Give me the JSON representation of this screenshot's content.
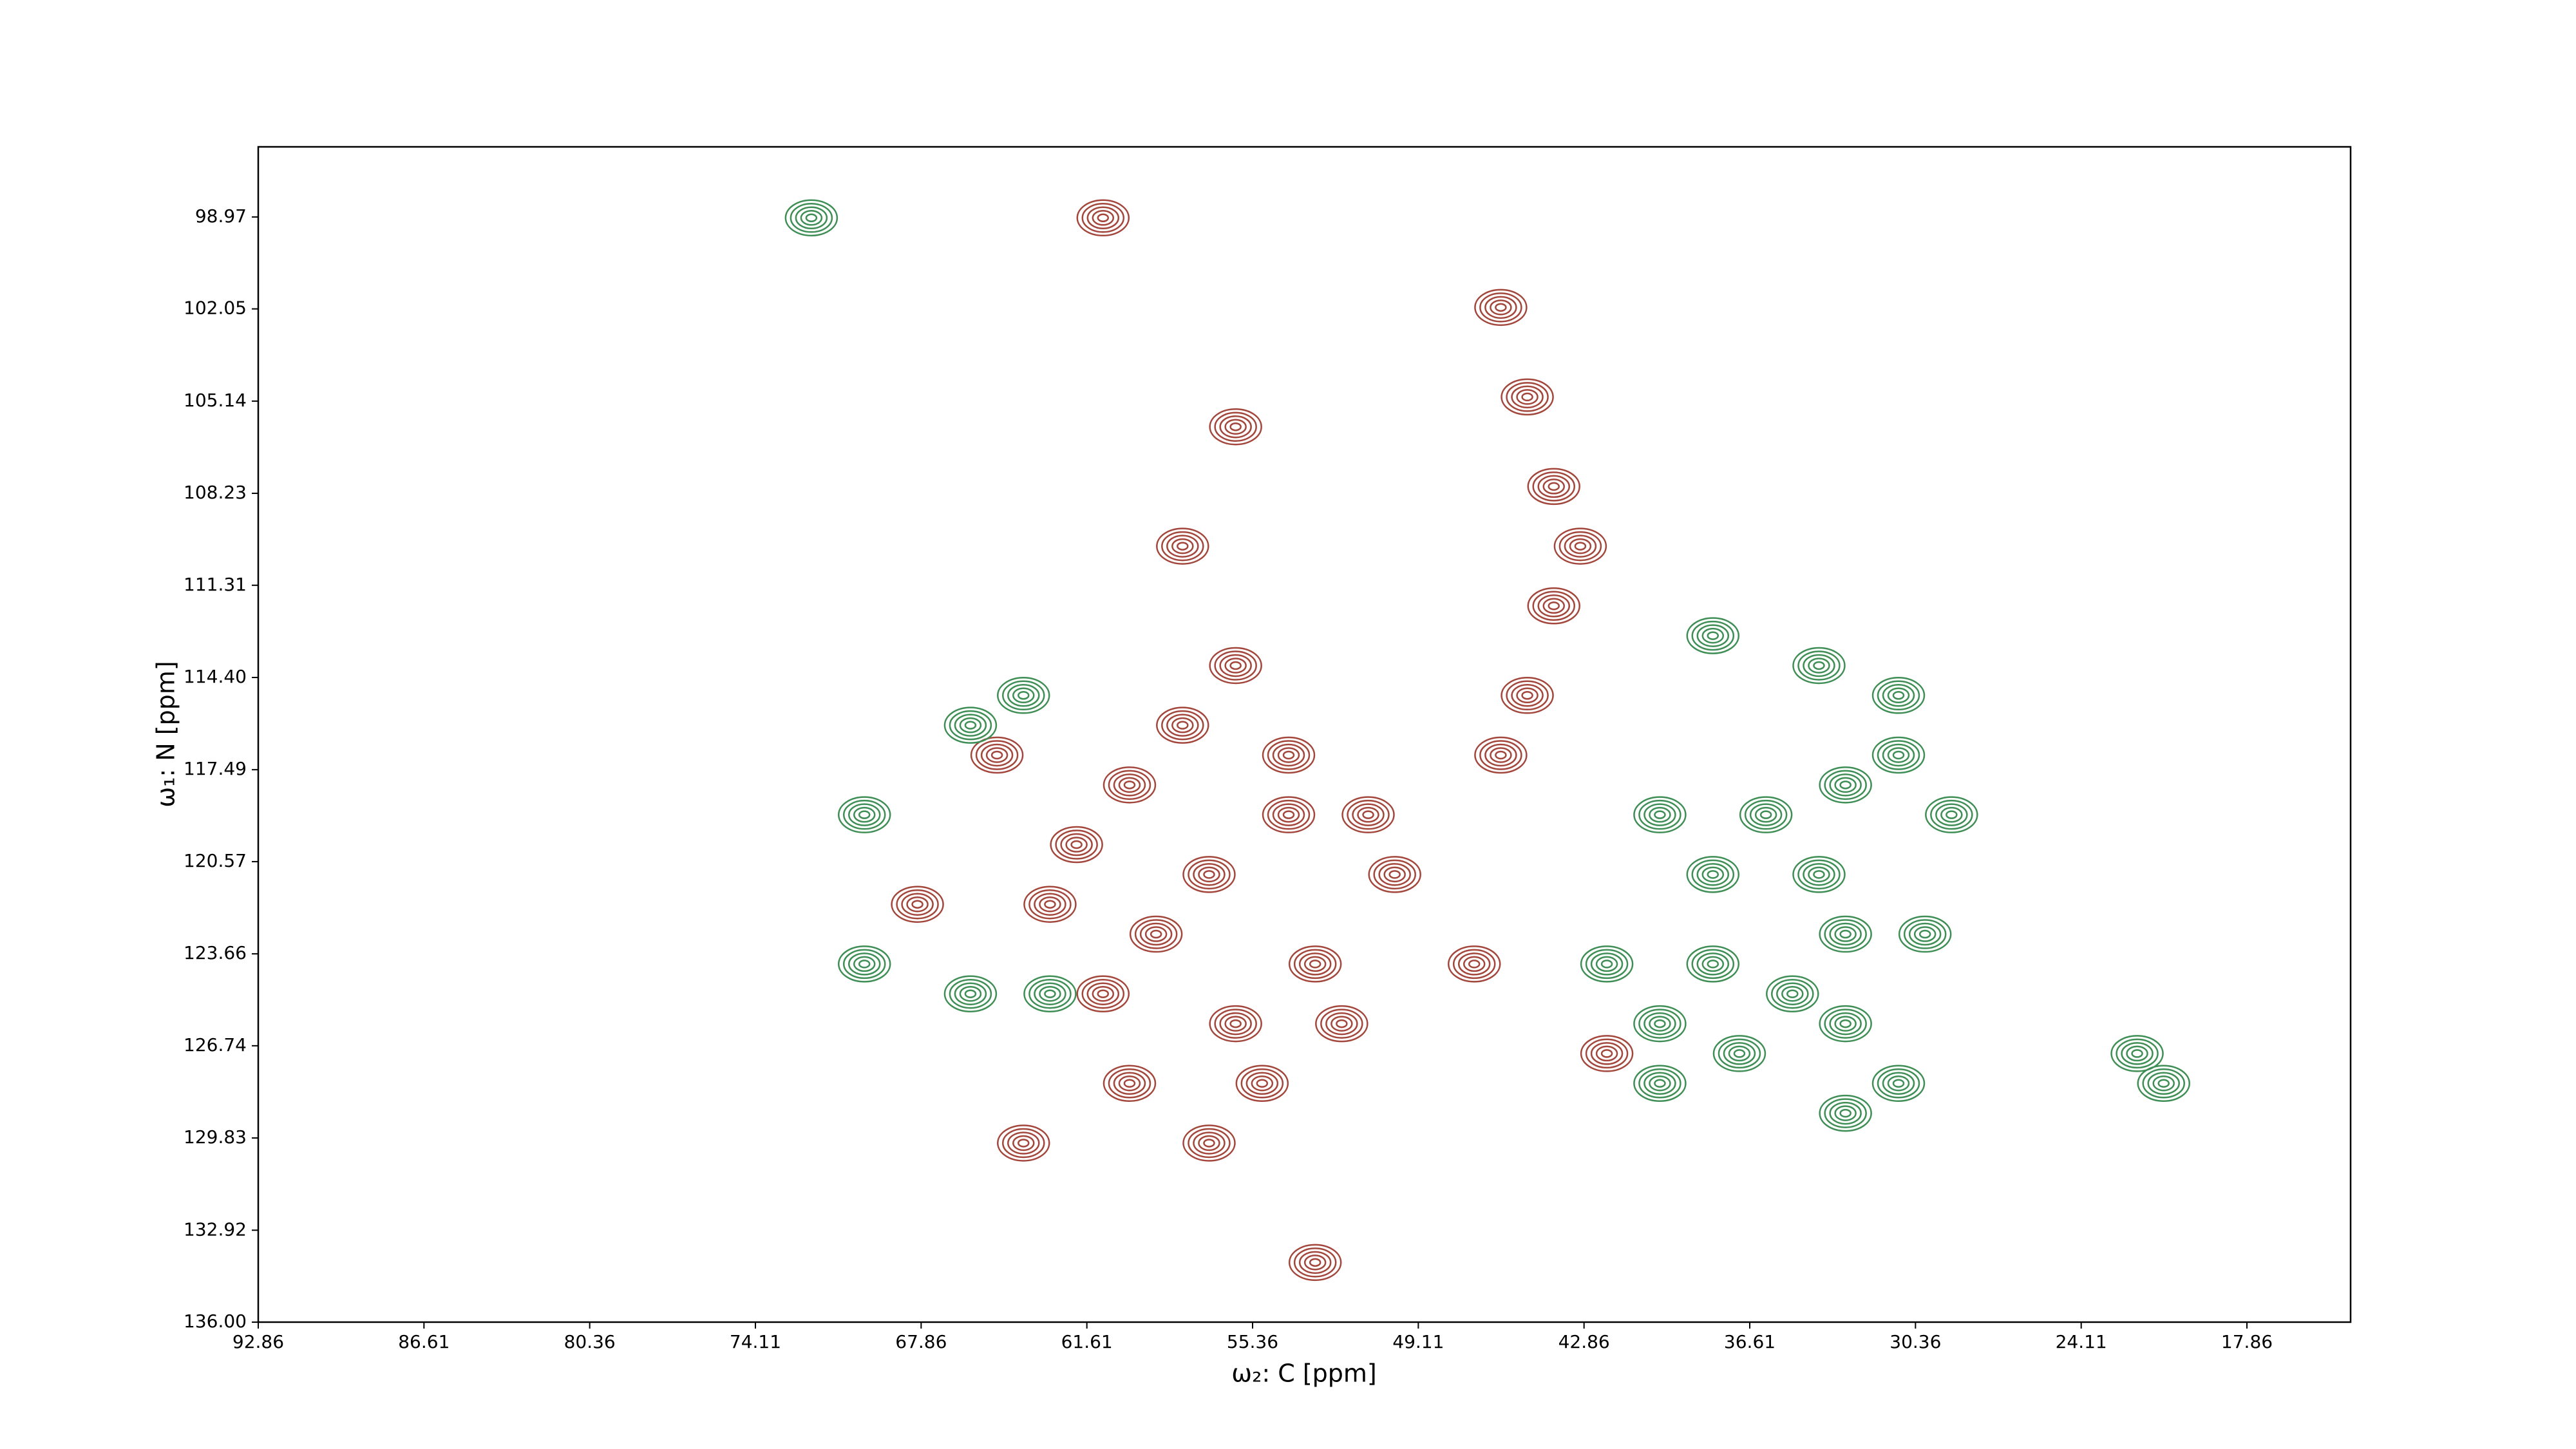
{
  "chart_data": {
    "type": "contour",
    "xlabel": "ω₂: C [ppm]",
    "ylabel": "ω₁: N [ppm]",
    "xlim": [
      92.86,
      13.95
    ],
    "ylim": [
      136.0,
      96.62
    ],
    "xticks": [
      92.86,
      86.61,
      80.36,
      74.11,
      67.86,
      61.61,
      55.36,
      49.11,
      42.86,
      36.61,
      30.36,
      24.11,
      17.86
    ],
    "yticks": [
      98.97,
      102.05,
      105.14,
      108.23,
      111.31,
      {
        "value": 114.4,
        "label": "114.40"
      },
      117.49,
      120.57,
      123.66,
      126.74,
      129.83,
      132.92,
      {
        "value": 136.0,
        "label": "136.00"
      }
    ],
    "series": [
      {
        "color": "#a3463c",
        "x": [
          56,
          58,
          60,
          62,
          57,
          54,
          59,
          61,
          56,
          53,
          55,
          60,
          57,
          52,
          63,
          64,
          54,
          51,
          50,
          65,
          68,
          46,
          45,
          44,
          43,
          44,
          46,
          45,
          61,
          56,
          47,
          42,
          58,
          53
        ],
        "values": [
          114,
          116,
          118,
          120,
          121,
          119,
          123,
          125,
          126,
          124,
          128,
          128,
          130,
          126,
          122,
          130,
          117,
          119,
          121,
          117,
          122,
          102,
          105,
          108,
          110,
          112,
          117,
          115,
          99,
          106,
          124,
          127,
          110,
          134
        ]
      },
      {
        "color": "#3e8e55",
        "x": [
          70,
          66,
          64,
          38,
          40,
          38,
          36,
          33,
          31,
          34,
          33,
          35,
          37,
          40,
          42,
          40,
          33,
          31,
          33,
          30,
          29,
          22,
          21,
          31,
          34,
          66,
          70,
          63,
          72,
          38
        ],
        "values": [
          119,
          116,
          115,
          113,
          119,
          121,
          119,
          118,
          117,
          121,
          123,
          125,
          127,
          126,
          124,
          128,
          126,
          128,
          129,
          123,
          119,
          127,
          128,
          115,
          114,
          125,
          124,
          125,
          99,
          124
        ]
      }
    ]
  }
}
